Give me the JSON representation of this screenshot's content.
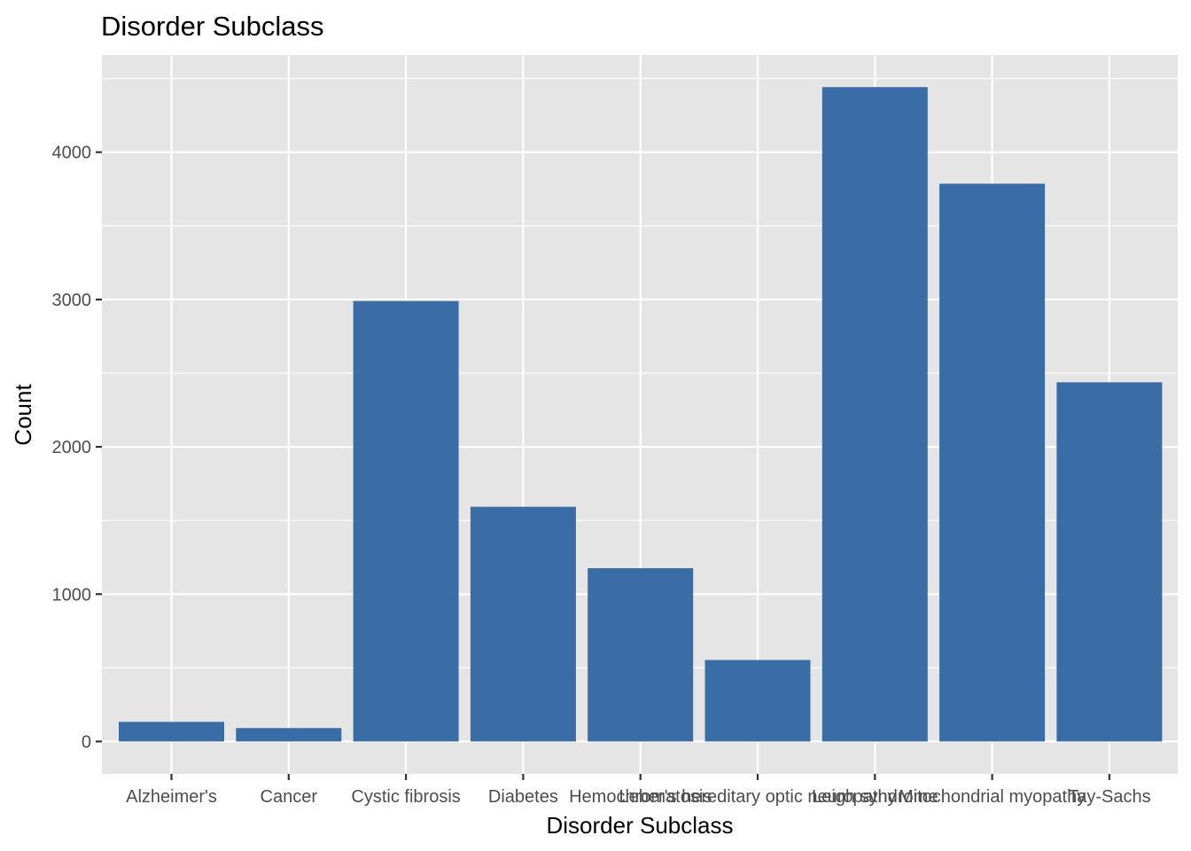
{
  "chart_data": {
    "type": "bar",
    "title": "Disorder Subclass",
    "xlabel": "Disorder Subclass",
    "ylabel": "Count",
    "categories": [
      "Alzheimer's",
      "Cancer",
      "Cystic fibrosis",
      "Diabetes",
      "Hemochromatosis",
      "Leber's hereditary optic neuropathy",
      "Leigh syndrome",
      "Mitochondrial myopathy",
      "Tay-Sachs"
    ],
    "values": [
      133,
      91,
      2990,
      1593,
      1176,
      553,
      4442,
      3786,
      2438
    ],
    "ylim": [
      -220,
      4660
    ],
    "yticks": [
      0,
      1000,
      2000,
      3000,
      4000
    ],
    "grid": true,
    "bar_color": "#3a6da5",
    "panel_color": "#e5e5e5",
    "grid_color": "#ffffff"
  }
}
